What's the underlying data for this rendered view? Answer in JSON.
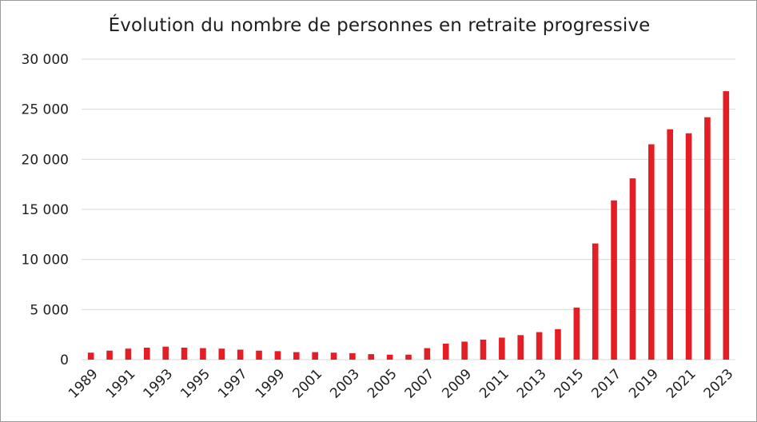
{
  "chart_data": {
    "type": "bar",
    "title": "Évolution du nombre de personnes en retraite progressive",
    "xlabel": "",
    "ylabel": "",
    "ylim": [
      0,
      30000
    ],
    "y_ticks": [
      0,
      5000,
      10000,
      15000,
      20000,
      25000,
      30000
    ],
    "y_tick_labels": [
      "0",
      "5 000",
      "10 000",
      "15 000",
      "20 000",
      "25 000",
      "30 000"
    ],
    "grid": true,
    "legend": "none",
    "bar_color": "#e31e24",
    "categories": [
      "1989",
      "1990",
      "1991",
      "1992",
      "1993",
      "1994",
      "1995",
      "1996",
      "1997",
      "1998",
      "1999",
      "2000",
      "2001",
      "2002",
      "2003",
      "2004",
      "2005",
      "2006",
      "2007",
      "2008",
      "2009",
      "2010",
      "2011",
      "2012",
      "2013",
      "2014",
      "2015",
      "2016",
      "2017",
      "2018",
      "2019",
      "2020",
      "2021",
      "2022",
      "2023"
    ],
    "x_tick_labels": [
      "1989",
      "",
      "1991",
      "",
      "1993",
      "",
      "1995",
      "",
      "1997",
      "",
      "1999",
      "",
      "2001",
      "",
      "2003",
      "",
      "2005",
      "",
      "2007",
      "",
      "2009",
      "",
      "2011",
      "",
      "2013",
      "",
      "2015",
      "",
      "2017",
      "",
      "2019",
      "",
      "2021",
      "",
      "2023"
    ],
    "values": [
      700,
      900,
      1100,
      1200,
      1300,
      1200,
      1150,
      1100,
      1000,
      900,
      850,
      750,
      750,
      700,
      650,
      550,
      500,
      500,
      1150,
      1600,
      1800,
      2000,
      2200,
      2450,
      2750,
      3050,
      5200,
      11600,
      15900,
      18100,
      21500,
      23000,
      22600,
      24200,
      26800
    ]
  }
}
